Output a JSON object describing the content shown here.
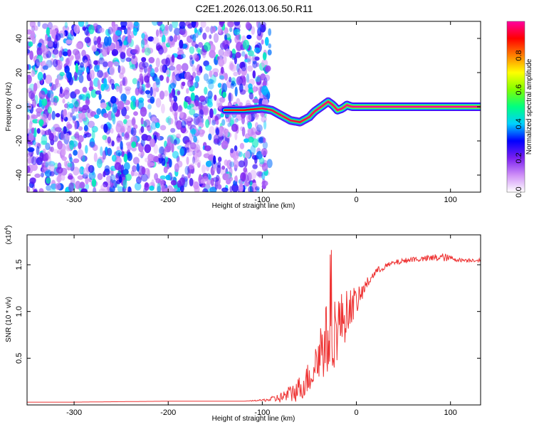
{
  "title": "C2E1.2026.013.06.50.R11",
  "colorbar": {
    "label": "Normalized spectral amplitude",
    "ticks": [
      "0.0",
      "0.2",
      "0.4",
      "0.6",
      "0.8"
    ],
    "tick_values": [
      0.0,
      0.2,
      0.4,
      0.6,
      0.8
    ],
    "range": [
      0,
      1
    ],
    "colors": [
      "#ffffff",
      "#cf8ff7",
      "#7a1ff0",
      "#0000ff",
      "#00d0ff",
      "#00ff80",
      "#80ff00",
      "#ffff00",
      "#ff8000",
      "#ff0000",
      "#ff00a0"
    ]
  },
  "chart_data": [
    {
      "type": "heatmap",
      "name": "spectrogram",
      "xlabel": "Height of straight line (km)",
      "ylabel": "Frequency (Hz)",
      "xlim": [
        -350,
        132
      ],
      "ylim": [
        -50,
        50
      ],
      "xticks": [
        -300,
        -200,
        -100,
        0,
        100
      ],
      "xtick_labels": [
        "-300",
        "-200",
        "-100",
        "0",
        "100"
      ],
      "yticks": [
        -40,
        -20,
        0,
        20,
        40
      ],
      "ytick_labels": [
        "-40",
        "-20",
        "0",
        "20",
        "40"
      ],
      "noise_region_x": [
        -350,
        -100
      ],
      "noise_amplitude": 0.15,
      "signal_track": {
        "x": [
          -140,
          -120,
          -100,
          -90,
          -80,
          -70,
          -60,
          -50,
          -45,
          -40,
          -35,
          -30,
          -25,
          -20,
          -15,
          -10,
          -5,
          0,
          132
        ],
        "frequency": [
          -2,
          -2,
          -1,
          -2,
          -5,
          -8,
          -9,
          -6,
          -3,
          -1,
          1,
          3,
          1,
          -2,
          -1,
          1,
          0,
          0,
          0
        ],
        "amplitude": [
          0.3,
          0.4,
          0.6,
          0.7,
          0.8,
          0.7,
          0.7,
          0.8,
          0.8,
          0.85,
          0.85,
          0.8,
          0.85,
          0.9,
          0.9,
          0.95,
          0.95,
          1.0,
          1.0
        ]
      }
    },
    {
      "type": "line",
      "name": "snr",
      "xlabel": "Height of straight line (km)",
      "ylabel": "SNR (10 * v/v)",
      "scale_label": "(x10",
      "scale_exponent": "4",
      "color": "#ee3333",
      "xlim": [
        -350,
        132
      ],
      "ylim": [
        0,
        1.82
      ],
      "xticks": [
        -300,
        -200,
        -100,
        0,
        100
      ],
      "xtick_labels": [
        "-300",
        "-200",
        "-100",
        "0",
        "100"
      ],
      "yticks": [
        0.5,
        1.0,
        1.5
      ],
      "ytick_labels": [
        "0.5",
        "1.0",
        "1.5"
      ],
      "x": [
        -350,
        -300,
        -250,
        -200,
        -150,
        -120,
        -100,
        -90,
        -80,
        -70,
        -60,
        -50,
        -45,
        -40,
        -35,
        -30,
        -25,
        -20,
        -15,
        -10,
        -5,
        0,
        5,
        10,
        15,
        20,
        25,
        30,
        40,
        50,
        60,
        70,
        80,
        90,
        100,
        110,
        120,
        132
      ],
      "y": [
        0.03,
        0.03,
        0.035,
        0.04,
        0.04,
        0.04,
        0.05,
        0.06,
        0.08,
        0.12,
        0.18,
        0.3,
        0.4,
        0.55,
        0.65,
        0.7,
        0.78,
        0.85,
        0.9,
        0.98,
        1.08,
        1.1,
        1.18,
        1.28,
        1.35,
        1.42,
        1.45,
        1.48,
        1.52,
        1.54,
        1.56,
        1.56,
        1.57,
        1.58,
        1.57,
        1.55,
        1.55,
        1.55
      ],
      "noise": [
        0.0,
        0.0,
        0.0,
        0.0,
        0.0,
        0.0,
        0.01,
        0.03,
        0.06,
        0.1,
        0.14,
        0.18,
        0.24,
        0.32,
        0.38,
        0.42,
        0.42,
        0.38,
        0.32,
        0.25,
        0.2,
        0.15,
        0.1,
        0.07,
        0.05,
        0.04,
        0.04,
        0.03,
        0.03,
        0.03,
        0.03,
        0.03,
        0.04,
        0.05,
        0.03,
        0.02,
        0.02,
        0.02
      ]
    }
  ]
}
